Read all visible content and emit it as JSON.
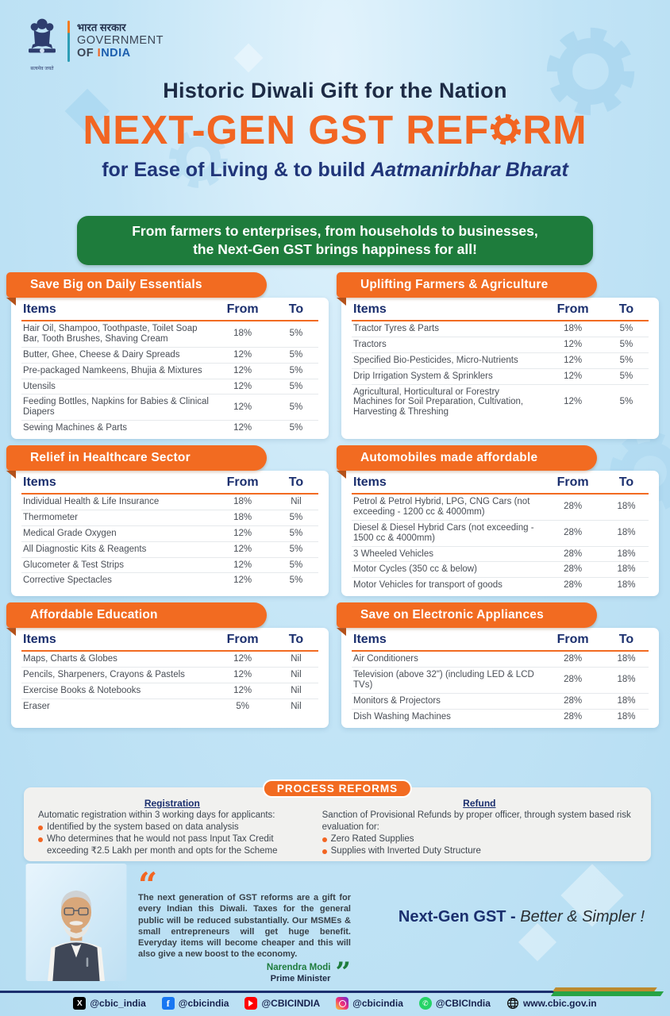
{
  "header": {
    "motto": "सत्यमेव जयते",
    "gov_hindi": "भारत सरकार",
    "gov_line2": "GOVERNMENT",
    "gov_of": "OF ",
    "gov_i": "I",
    "gov_ndia": "NDIA",
    "headline": "Historic Diwali Gift for the Nation",
    "title_pre": "NEXT-GEN GST REF",
    "title_post": "RM",
    "subtitle_normal": "for Ease of Living & to build ",
    "subtitle_italic": "Aatmanirbhar Bharat"
  },
  "banner": {
    "line1": "From farmers to enterprises, from households to businesses,",
    "line2": "the Next-Gen GST brings happiness for all!"
  },
  "tables": [
    {
      "title": "Save Big on Daily Essentials",
      "headers": [
        "Items",
        "From",
        "To"
      ],
      "rows": [
        {
          "item": "Hair Oil, Shampoo, Toothpaste, Toilet Soap Bar, Tooth Brushes, Shaving Cream",
          "from": "18%",
          "to": "5%"
        },
        {
          "item": "Butter, Ghee, Cheese & Dairy Spreads",
          "from": "12%",
          "to": "5%"
        },
        {
          "item": "Pre-packaged Namkeens, Bhujia & Mixtures",
          "from": "12%",
          "to": "5%"
        },
        {
          "item": "Utensils",
          "from": "12%",
          "to": "5%"
        },
        {
          "item": "Feeding Bottles, Napkins for Babies & Clinical Diapers",
          "from": "12%",
          "to": "5%"
        },
        {
          "item": "Sewing Machines & Parts",
          "from": "12%",
          "to": "5%"
        }
      ]
    },
    {
      "title": "Uplifting Farmers & Agriculture",
      "headers": [
        "Items",
        "From",
        "To"
      ],
      "rows": [
        {
          "item": "Tractor Tyres & Parts",
          "from": "18%",
          "to": "5%"
        },
        {
          "item": "Tractors",
          "from": "12%",
          "to": "5%"
        },
        {
          "item": "Specified Bio-Pesticides, Micro-Nutrients",
          "from": "12%",
          "to": "5%"
        },
        {
          "item": "Drip Irrigation System & Sprinklers",
          "from": "12%",
          "to": "5%"
        },
        {
          "item": "Agricultural, Horticultural or Forestry Machines for Soil Preparation, Cultivation, Harvesting & Threshing",
          "from": "12%",
          "to": "5%"
        }
      ]
    },
    {
      "title": "Relief in Healthcare Sector",
      "headers": [
        "Items",
        "From",
        "To"
      ],
      "rows": [
        {
          "item": "Individual Health & Life Insurance",
          "from": "18%",
          "to": "Nil"
        },
        {
          "item": "Thermometer",
          "from": "18%",
          "to": "5%"
        },
        {
          "item": "Medical Grade Oxygen",
          "from": "12%",
          "to": "5%"
        },
        {
          "item": "All Diagnostic Kits & Reagents",
          "from": "12%",
          "to": "5%"
        },
        {
          "item": "Glucometer & Test Strips",
          "from": "12%",
          "to": "5%"
        },
        {
          "item": "Corrective Spectacles",
          "from": "12%",
          "to": "5%"
        }
      ]
    },
    {
      "title": "Automobiles made affordable",
      "headers": [
        "Items",
        "From",
        "To"
      ],
      "rows": [
        {
          "item": "Petrol & Petrol Hybrid, LPG, CNG Cars (not exceeding - 1200 cc & 4000mm)",
          "from": "28%",
          "to": "18%"
        },
        {
          "item": "Diesel & Diesel Hybrid Cars (not exceeding - 1500 cc & 4000mm)",
          "from": "28%",
          "to": "18%"
        },
        {
          "item": "3 Wheeled Vehicles",
          "from": "28%",
          "to": "18%"
        },
        {
          "item": "Motor Cycles (350 cc & below)",
          "from": "28%",
          "to": "18%"
        },
        {
          "item": "Motor Vehicles for transport of goods",
          "from": "28%",
          "to": "18%"
        }
      ]
    },
    {
      "title": "Affordable Education",
      "headers": [
        "Items",
        "From",
        "To"
      ],
      "rows": [
        {
          "item": "Maps, Charts & Globes",
          "from": "12%",
          "to": "Nil"
        },
        {
          "item": "Pencils, Sharpeners, Crayons & Pastels",
          "from": "12%",
          "to": "Nil"
        },
        {
          "item": "Exercise Books & Notebooks",
          "from": "12%",
          "to": "Nil"
        },
        {
          "item": "Eraser",
          "from": "5%",
          "to": "Nil"
        }
      ]
    },
    {
      "title": "Save on Electronic Appliances",
      "headers": [
        "Items",
        "From",
        "To"
      ],
      "rows": [
        {
          "item": "Air Conditioners",
          "from": "28%",
          "to": "18%"
        },
        {
          "item": "Television (above 32\") (including LED & LCD TVs)",
          "from": "28%",
          "to": "18%"
        },
        {
          "item": "Monitors & Projectors",
          "from": "28%",
          "to": "18%"
        },
        {
          "item": "Dish Washing Machines",
          "from": "28%",
          "to": "18%"
        }
      ]
    }
  ],
  "process": {
    "title": "PROCESS REFORMS",
    "registration": {
      "heading": "Registration",
      "intro": "Automatic registration within 3 working days for applicants:",
      "bullets": [
        "Identified by the system based on data analysis",
        "Who determines that he would not pass Input Tax Credit exceeding ₹2.5 Lakh per month and opts for the Scheme"
      ]
    },
    "refund": {
      "heading": "Refund",
      "intro": "Sanction of Provisional Refunds by proper officer, through system based risk evaluation for:",
      "bullets": [
        "Zero Rated Supplies",
        "Supplies with Inverted Duty Structure"
      ]
    }
  },
  "quote": {
    "text": "The next generation of GST reforms are a gift for every Indian this Diwali. Taxes for the general public will be reduced substantially. Our MSMEs & small entrepreneurs will get huge benefit. Everyday items will become cheaper and this will also give a new boost to the economy.",
    "author": "Narendra Modi",
    "role": "Prime Minister"
  },
  "tagline": {
    "bold": "Next-Gen GST - ",
    "italic": "Better & Simpler !"
  },
  "footer": {
    "socials": [
      {
        "icon": "x-icon",
        "handle": "@cbic_india"
      },
      {
        "icon": "facebook-icon",
        "handle": "@cbicindia"
      },
      {
        "icon": "youtube-icon",
        "handle": "@CBICINDIA"
      },
      {
        "icon": "instagram-icon",
        "handle": "@cbicindia"
      },
      {
        "icon": "whatsapp-icon",
        "handle": "@CBICIndia"
      },
      {
        "icon": "globe-icon",
        "handle": "www.cbic.gov.in"
      }
    ]
  },
  "colors": {
    "accent_orange": "#F26522",
    "ribbon_orange": "#F26B21",
    "ribbon_fold": "#B4511A",
    "banner_green": "#1E7C3C",
    "navy": "#1B2F6E",
    "bg_blue": "#BFE2F6"
  }
}
